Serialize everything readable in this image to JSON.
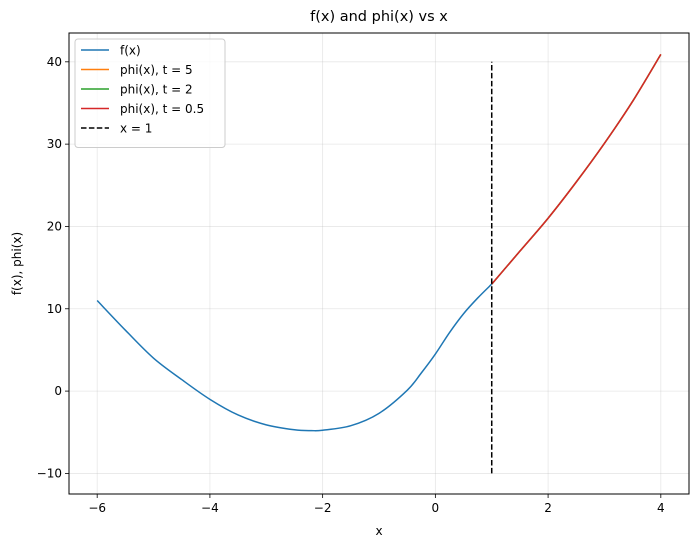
{
  "chart_data": {
    "type": "line",
    "title": "f(x) and phi(x) vs x",
    "xlabel": "x",
    "ylabel": "f(x), phi(x)",
    "xlim": [
      -6.5,
      4.5
    ],
    "ylim": [
      -12.5,
      43.5
    ],
    "x_ticks": [
      -6,
      -4,
      -2,
      0,
      2,
      4
    ],
    "y_ticks": [
      -10,
      0,
      10,
      20,
      30,
      40
    ],
    "grid": true,
    "legend_position": "top-left",
    "series": [
      {
        "name": "f(x)",
        "color": "#1f77b4",
        "style": "solid",
        "x": [
          -6.0,
          -5.5,
          -5.0,
          -4.5,
          -4.0,
          -3.5,
          -3.0,
          -2.5,
          -2.2,
          -2.0,
          -1.5,
          -1.0,
          -0.5,
          -0.25,
          0.0,
          0.25,
          0.5,
          0.75,
          1.0
        ],
        "y": [
          11.0,
          7.4,
          4.0,
          1.4,
          -1.0,
          -2.9,
          -4.1,
          -4.7,
          -4.8,
          -4.75,
          -4.2,
          -2.7,
          0.1,
          2.2,
          4.5,
          7.1,
          9.4,
          11.3,
          13.0
        ]
      },
      {
        "name": "phi(x), t = 5",
        "color": "#ff7f0e",
        "style": "solid",
        "x": [
          1.0,
          1.5,
          2.0,
          2.5,
          3.0,
          3.5,
          4.0
        ],
        "y": [
          13.0,
          17.0,
          21.0,
          25.4,
          30.1,
          35.2,
          40.9
        ]
      },
      {
        "name": "phi(x), t = 2",
        "color": "#2ca02c",
        "style": "solid",
        "x": [
          1.0,
          1.5,
          2.0,
          2.5,
          3.0,
          3.5,
          4.0
        ],
        "y": [
          13.0,
          17.0,
          21.0,
          25.4,
          30.1,
          35.2,
          40.9
        ]
      },
      {
        "name": "phi(x), t = 0.5",
        "color": "#d62728",
        "style": "solid",
        "x": [
          1.0,
          1.5,
          2.0,
          2.5,
          3.0,
          3.5,
          4.0
        ],
        "y": [
          13.0,
          17.0,
          21.0,
          25.4,
          30.1,
          35.2,
          40.9
        ]
      },
      {
        "name": "x = 1",
        "color": "#000000",
        "style": "dashed",
        "x": [
          1.0,
          1.0
        ],
        "y": [
          -10.0,
          40.0
        ]
      }
    ]
  }
}
